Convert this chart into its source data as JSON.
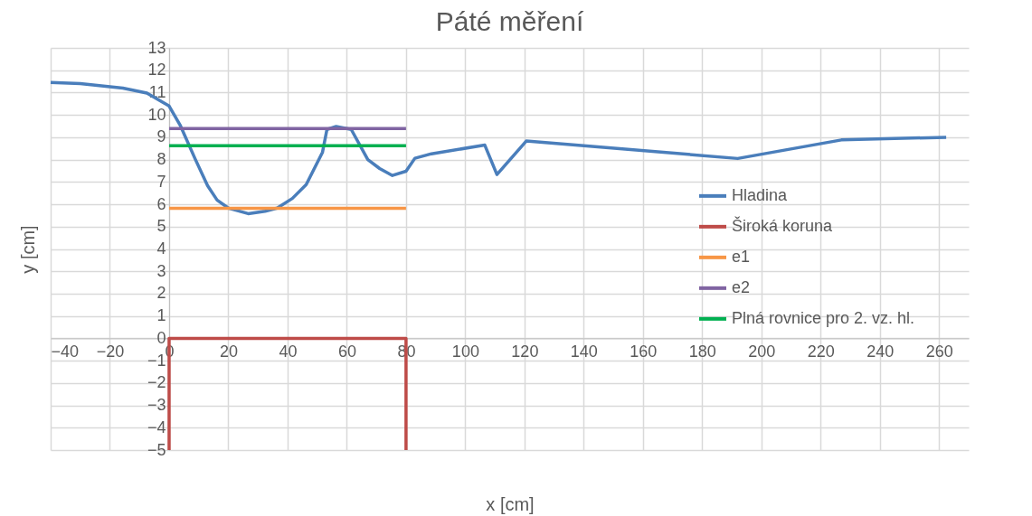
{
  "chart_data": {
    "type": "line",
    "title": "Páté měření",
    "xlabel": "x [cm]",
    "ylabel": "y [cm]",
    "series": [
      {
        "name": "Hladina",
        "color": "#4a7ebb",
        "x": [
          -40,
          -30,
          -15.6,
          -7.5,
          0,
          3.7,
          8.9,
          13,
          16.2,
          20,
          26.7,
          32.4,
          36.5,
          41.6,
          46.3,
          51.8,
          53.3,
          56.4,
          61.5,
          67.1,
          71.1,
          75.4,
          80,
          83,
          88.6,
          106.6,
          110.7,
          120.6,
          192,
          227,
          262.4
        ],
        "values": [
          11.45,
          11.4,
          11.2,
          10.98,
          10.4,
          9.55,
          8.0,
          6.83,
          6.19,
          5.83,
          5.58,
          5.69,
          5.83,
          6.26,
          6.88,
          8.33,
          9.35,
          9.48,
          9.35,
          8.0,
          7.6,
          7.29,
          7.48,
          8.06,
          8.26,
          8.65,
          7.33,
          8.83,
          8.05,
          8.88,
          9.0
        ]
      },
      {
        "name": "Široká koruna",
        "color": "#be4b48",
        "x": [
          0,
          0,
          80,
          80
        ],
        "values": [
          -5,
          0,
          0,
          -5
        ]
      },
      {
        "name": "e1",
        "color": "#f79646",
        "x": [
          0,
          80
        ],
        "values": [
          5.82,
          5.82
        ]
      },
      {
        "name": "e2",
        "color": "#8064a2",
        "x": [
          0,
          80
        ],
        "values": [
          9.39,
          9.39
        ]
      },
      {
        "name": "Plná rovnice pro 2. vz. hl.",
        "color": "#00b050",
        "x": [
          0,
          80
        ],
        "values": [
          8.62,
          8.62
        ]
      }
    ],
    "xlim": [
      -40,
      270
    ],
    "xticks": [
      -40,
      -20,
      0,
      20,
      40,
      60,
      80,
      100,
      120,
      140,
      160,
      180,
      200,
      220,
      240,
      260
    ],
    "ylim": [
      -5,
      13
    ],
    "yticks": [
      -5,
      -4,
      -3,
      -2,
      -1,
      0,
      1,
      2,
      3,
      4,
      5,
      6,
      7,
      8,
      9,
      10,
      11,
      12,
      13
    ],
    "grid": true,
    "legend": "right",
    "line_style": "solid",
    "marker": "none"
  }
}
